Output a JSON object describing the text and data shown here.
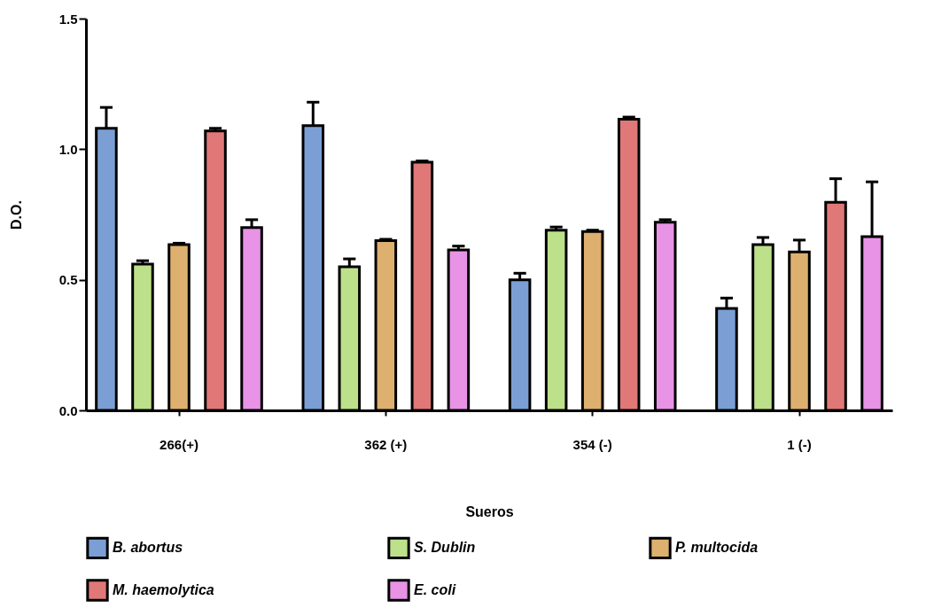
{
  "chart_data": {
    "type": "bar",
    "xlabel": "Sueros",
    "ylabel": "D.O.",
    "categories": [
      "266(+)",
      "362 (+)",
      "354 (-)",
      "1 (-)"
    ],
    "series": [
      {
        "name": "B. abortus",
        "color": "#7b9fd4",
        "values": [
          1.08,
          1.09,
          0.5,
          0.39
        ],
        "errors": [
          0.08,
          0.09,
          0.025,
          0.04
        ]
      },
      {
        "name": "S. Dublin",
        "color": "#bde08a",
        "values": [
          0.56,
          0.55,
          0.69,
          0.635
        ],
        "errors": [
          0.013,
          0.03,
          0.012,
          0.027
        ]
      },
      {
        "name": "P. multocida",
        "color": "#ddb070",
        "values": [
          0.635,
          0.65,
          0.685,
          0.607
        ],
        "errors": [
          0.005,
          0.005,
          0.005,
          0.045
        ]
      },
      {
        "name": "M. haemolytica",
        "color": "#e07878",
        "values": [
          1.07,
          0.95,
          1.115,
          0.797
        ],
        "errors": [
          0.01,
          0.005,
          0.008,
          0.09
        ]
      },
      {
        "name": "E. coli",
        "color": "#e893e6",
        "values": [
          0.7,
          0.614,
          0.72,
          0.665
        ],
        "errors": [
          0.03,
          0.015,
          0.01,
          0.21
        ]
      }
    ],
    "ylim": [
      0,
      1.5
    ],
    "yticks": [
      {
        "value": 0,
        "label": "0.0"
      },
      {
        "value": 0.5,
        "label": "0.5"
      },
      {
        "value": 1,
        "label": "1.0"
      },
      {
        "value": 1.5,
        "label": "1.5"
      }
    ],
    "grid": false,
    "legend": "bottom"
  }
}
